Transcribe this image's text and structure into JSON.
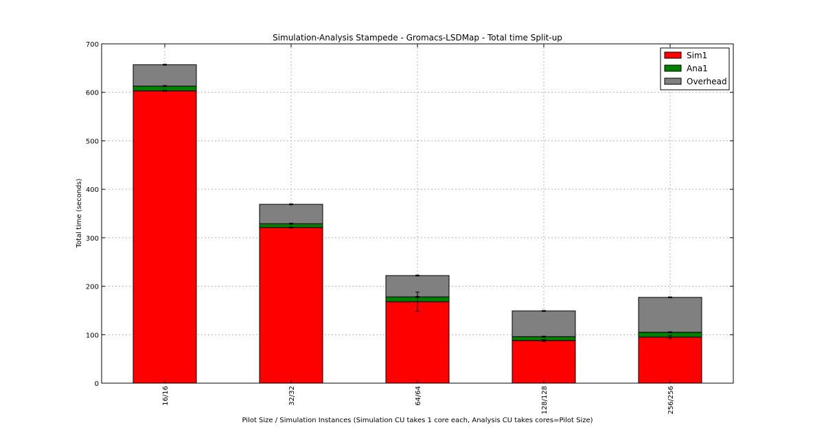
{
  "chart_data": {
    "type": "bar",
    "stacked": true,
    "title": "Simulation-Analysis Stampede - Gromacs-LSDMap - Total time Split-up",
    "xlabel": "Pilot Size / Simulation Instances (Simulation CU takes 1 core each, Analysis CU takes cores=Pilot Size)",
    "ylabel": "Total time (seconds)",
    "ylim": [
      0,
      700
    ],
    "yticks": [
      "0",
      "100",
      "200",
      "300",
      "400",
      "500",
      "600",
      "700"
    ],
    "grid": true,
    "legend_position": "top-right",
    "categories": [
      "16/16",
      "32/32",
      "64/64",
      "128/128",
      "256/256"
    ],
    "series": [
      {
        "name": "Sim1",
        "color": "#ff0000",
        "values": [
          603,
          321,
          168,
          88,
          95
        ],
        "errors": [
          1,
          1,
          20,
          2,
          3
        ]
      },
      {
        "name": "Ana1",
        "color": "#008000",
        "values": [
          10,
          8,
          10,
          8,
          10
        ],
        "errors": [
          1,
          1,
          1,
          1,
          1
        ]
      },
      {
        "name": "Overhead",
        "color": "#808080",
        "values": [
          44,
          40,
          44,
          53,
          72
        ],
        "errors": [
          1,
          1,
          1,
          1,
          1
        ]
      }
    ]
  }
}
